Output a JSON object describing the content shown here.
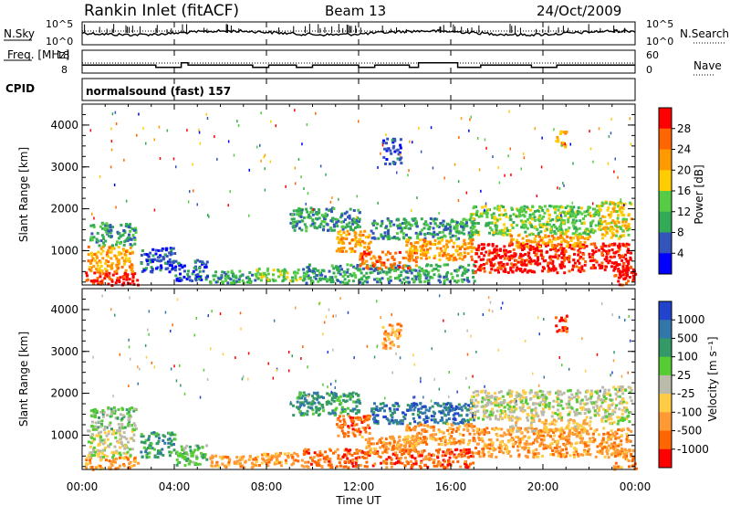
{
  "header": {
    "title": "Rankin Inlet (fitACF)",
    "beam": "Beam 13",
    "date": "24/Oct/2009",
    "cpid_label": "CPID",
    "cpid_value": "normalsound (fast) 157"
  },
  "colors": {
    "power_scale": [
      "#0000ff",
      "#3355bb",
      "#33aa55",
      "#55cc44",
      "#ffcc00",
      "#ff9900",
      "#ff6600",
      "#ff0000"
    ],
    "velocity_scale": [
      "#2244cc",
      "#3377aa",
      "#339966",
      "#55cc33",
      "#bbbbaa",
      "#ffcc44",
      "#ff9933",
      "#ff6600",
      "#ff0000"
    ]
  },
  "chart_data": [
    {
      "type": "line",
      "name": "nsky-panel",
      "ylabel": "N.Sky",
      "right_label": "N.Search",
      "y_ticks_left": [
        "10^5",
        "10^0"
      ],
      "y_ticks_right": [
        "10^5",
        "10^0"
      ],
      "xlim": [
        0,
        24
      ],
      "series": [
        {
          "name": "N.Sky",
          "style": "solid"
        },
        {
          "name": "N.Search",
          "style": "dotted"
        }
      ]
    },
    {
      "type": "line",
      "name": "freq-panel",
      "ylabel": "Freq. [MHz]",
      "right_label": "Nave",
      "ylim": [
        8,
        18
      ],
      "y_ticks_left": [
        "18",
        "8"
      ],
      "y_ticks_right": [
        "60",
        "0"
      ],
      "xlim": [
        0,
        24
      ],
      "freq_steps": [
        [
          0,
          11.5
        ],
        [
          3.2,
          10.5
        ],
        [
          4.3,
          12.5
        ],
        [
          4.6,
          11.5
        ],
        [
          7.4,
          10.5
        ],
        [
          8.1,
          11.5
        ],
        [
          9.3,
          10.5
        ],
        [
          10,
          11.5
        ],
        [
          12,
          10.5
        ],
        [
          12.7,
          11.5
        ],
        [
          14.2,
          10.5
        ],
        [
          14.6,
          12.5
        ],
        [
          16.3,
          10.5
        ],
        [
          17.3,
          11.5
        ],
        [
          19.5,
          10.5
        ],
        [
          20.6,
          11.5
        ],
        [
          24,
          11.5
        ]
      ]
    },
    {
      "type": "heatmap",
      "name": "power-panel",
      "ylabel": "Slant Range [km]",
      "xlim": [
        0,
        24
      ],
      "ylim": [
        180,
        4500
      ],
      "y_ticks": [
        1000,
        2000,
        3000,
        4000
      ],
      "colorbar": {
        "label": "Power [dB]",
        "ticks": [
          "4",
          "8",
          "12",
          "16",
          "20",
          "24",
          "28"
        ]
      },
      "regions": [
        {
          "t0": 0.1,
          "t1": 2.4,
          "r0": 200,
          "r1": 500,
          "v": 7
        },
        {
          "t0": 0.2,
          "t1": 2.2,
          "r0": 500,
          "r1": 1150,
          "v": 5
        },
        {
          "t0": 0.3,
          "t1": 2.3,
          "r0": 1150,
          "r1": 1700,
          "v": 2
        },
        {
          "t0": 2.5,
          "t1": 4.0,
          "r0": 500,
          "r1": 1100,
          "v": 1
        },
        {
          "t0": 4.0,
          "t1": 5.4,
          "r0": 300,
          "r1": 800,
          "v": 1
        },
        {
          "t0": 5.5,
          "t1": 7.5,
          "r0": 250,
          "r1": 550,
          "v": 2
        },
        {
          "t0": 7.5,
          "t1": 9.5,
          "r0": 300,
          "r1": 600,
          "v": 3
        },
        {
          "t0": 9.0,
          "t1": 12.0,
          "r0": 1500,
          "r1": 2050,
          "v": 2
        },
        {
          "t0": 11.0,
          "t1": 12.5,
          "r0": 1000,
          "r1": 1500,
          "v": 5
        },
        {
          "t0": 9.5,
          "t1": 17.0,
          "r0": 250,
          "r1": 700,
          "v": 2
        },
        {
          "t0": 12.0,
          "t1": 14.5,
          "r0": 600,
          "r1": 1000,
          "v": 6
        },
        {
          "t0": 12.5,
          "t1": 17.0,
          "r0": 1300,
          "r1": 1800,
          "v": 2
        },
        {
          "t0": 14.0,
          "t1": 17.0,
          "r0": 800,
          "r1": 1300,
          "v": 5
        },
        {
          "t0": 16.8,
          "t1": 22.5,
          "r0": 1400,
          "r1": 2100,
          "v": 3
        },
        {
          "t0": 17.0,
          "t1": 23.8,
          "r0": 500,
          "r1": 1200,
          "v": 7
        },
        {
          "t0": 18.5,
          "t1": 22.0,
          "r0": 1100,
          "r1": 1400,
          "v": 5
        },
        {
          "t0": 22.5,
          "t1": 23.8,
          "r0": 1300,
          "r1": 2200,
          "v": 4
        },
        {
          "t0": 23.0,
          "t1": 24.0,
          "r0": 200,
          "r1": 700,
          "v": 7
        },
        {
          "t0": 20.5,
          "t1": 21.0,
          "r0": 3500,
          "r1": 3900,
          "v": 5
        },
        {
          "t0": 13.0,
          "t1": 13.8,
          "r0": 3100,
          "r1": 3700,
          "v": 1
        }
      ]
    },
    {
      "type": "heatmap",
      "name": "velocity-panel",
      "ylabel": "Slant Range [km]",
      "xlabel": "Time UT",
      "xlim": [
        0,
        24
      ],
      "ylim": [
        180,
        4500
      ],
      "y_ticks": [
        1000,
        2000,
        3000,
        4000
      ],
      "x_ticks": [
        "00:00",
        "04:00",
        "08:00",
        "12:00",
        "16:00",
        "20:00",
        "00:00"
      ],
      "colorbar": {
        "label": "Velocity [m s⁻¹]",
        "ticks": [
          "1000",
          "500",
          "100",
          "25",
          "-25",
          "-100",
          "-500",
          "-1000"
        ]
      },
      "regions": [
        {
          "t0": 0.1,
          "t1": 2.4,
          "r0": 200,
          "r1": 500,
          "v": 6
        },
        {
          "t0": 0.2,
          "t1": 2.2,
          "r0": 500,
          "r1": 1150,
          "v": 4
        },
        {
          "t0": 0.3,
          "t1": 2.3,
          "r0": 1150,
          "r1": 1700,
          "v": 3
        },
        {
          "t0": 2.5,
          "t1": 4.0,
          "r0": 500,
          "r1": 1100,
          "v": 2
        },
        {
          "t0": 4.0,
          "t1": 5.4,
          "r0": 300,
          "r1": 800,
          "v": 3
        },
        {
          "t0": 5.5,
          "t1": 7.5,
          "r0": 250,
          "r1": 550,
          "v": 6
        },
        {
          "t0": 7.5,
          "t1": 9.5,
          "r0": 300,
          "r1": 600,
          "v": 6
        },
        {
          "t0": 9.0,
          "t1": 12.0,
          "r0": 1500,
          "r1": 2050,
          "v": 2
        },
        {
          "t0": 11.0,
          "t1": 12.5,
          "r0": 1000,
          "r1": 1500,
          "v": 7
        },
        {
          "t0": 9.5,
          "t1": 17.0,
          "r0": 250,
          "r1": 700,
          "v": 7
        },
        {
          "t0": 12.0,
          "t1": 14.5,
          "r0": 600,
          "r1": 1000,
          "v": 6
        },
        {
          "t0": 12.5,
          "t1": 17.0,
          "r0": 1300,
          "r1": 1800,
          "v": 1
        },
        {
          "t0": 14.0,
          "t1": 17.0,
          "r0": 800,
          "r1": 1300,
          "v": 6
        },
        {
          "t0": 16.8,
          "t1": 22.5,
          "r0": 1400,
          "r1": 2100,
          "v": 4
        },
        {
          "t0": 17.0,
          "t1": 23.8,
          "r0": 500,
          "r1": 1200,
          "v": 6
        },
        {
          "t0": 18.5,
          "t1": 22.0,
          "r0": 1100,
          "r1": 1400,
          "v": 5
        },
        {
          "t0": 22.5,
          "t1": 23.8,
          "r0": 1300,
          "r1": 2200,
          "v": 4
        },
        {
          "t0": 23.0,
          "t1": 24.0,
          "r0": 200,
          "r1": 700,
          "v": 6
        },
        {
          "t0": 20.5,
          "t1": 21.0,
          "r0": 3500,
          "r1": 3900,
          "v": 7
        },
        {
          "t0": 13.0,
          "t1": 13.8,
          "r0": 3100,
          "r1": 3700,
          "v": 6
        }
      ]
    }
  ]
}
